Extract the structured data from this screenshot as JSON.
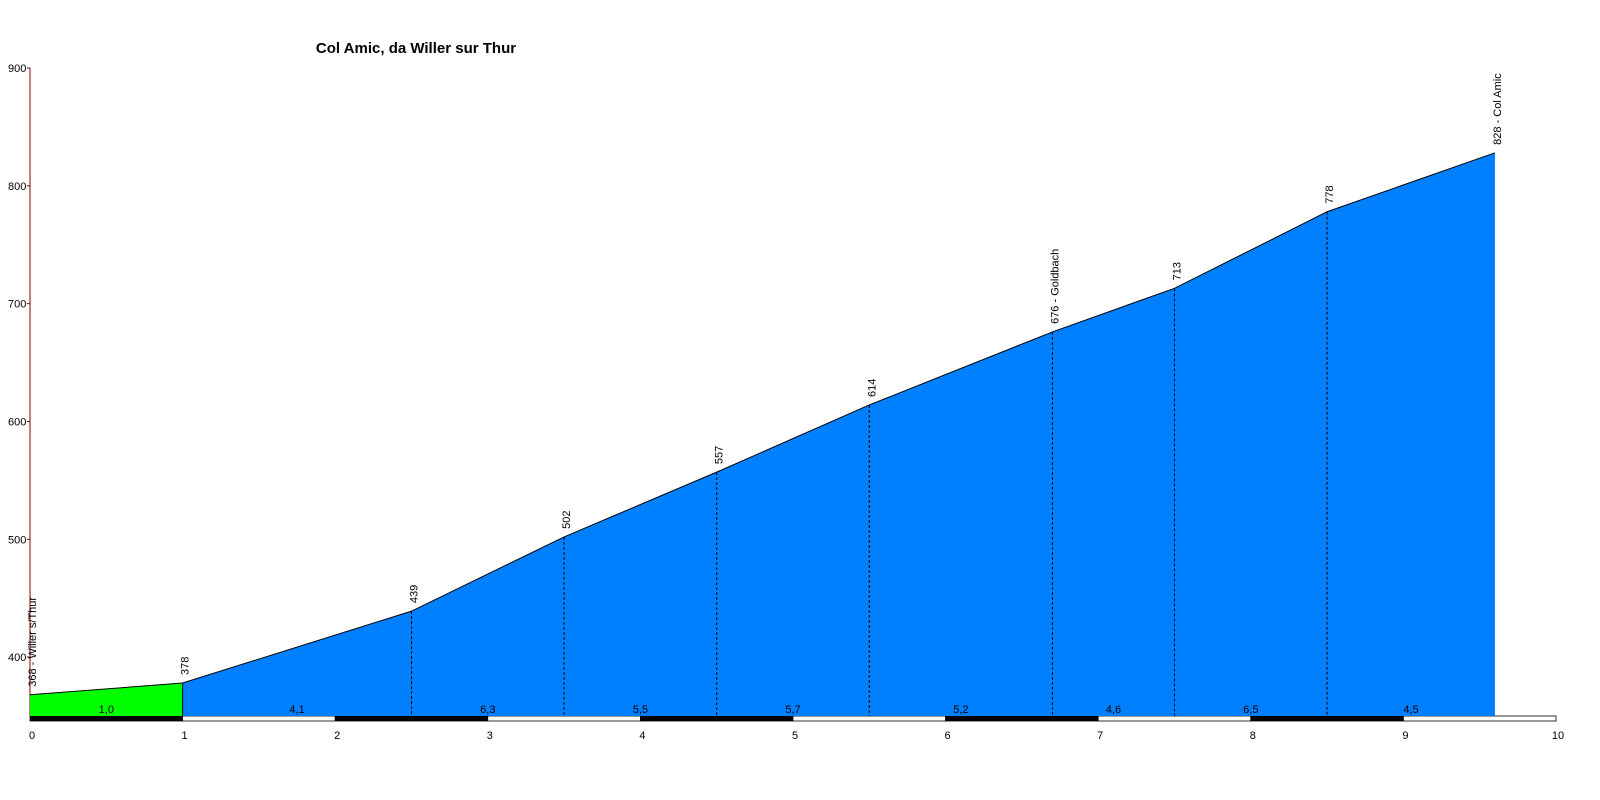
{
  "chart_data": {
    "type": "area",
    "title": "Col Amic, da Willer sur Thur",
    "x": [
      0,
      1,
      2.5,
      3.5,
      4.5,
      5.5,
      6.7,
      7.5,
      8.5,
      9.6
    ],
    "values": [
      368,
      378,
      439,
      502,
      557,
      614,
      676,
      713,
      778,
      828
    ],
    "point_labels": [
      "368 - Willer s/Thur",
      "378",
      "439",
      "502",
      "557",
      "614",
      "676 - Goldbach",
      "713",
      "778",
      "828 - Col Amic"
    ],
    "segment_labels": [
      "1,0",
      "4,1",
      "6,3",
      "5,5",
      "5,7",
      "5,2",
      "4,6",
      "6,5",
      "4,5"
    ],
    "segment_colors": [
      "#00ff00",
      "#0080ff",
      "#0080ff",
      "#0080ff",
      "#0080ff",
      "#0080ff",
      "#0080ff",
      "#0080ff",
      "#0080ff"
    ],
    "xlim": [
      0,
      10
    ],
    "xticks": [
      0,
      1,
      2,
      3,
      4,
      5,
      6,
      7,
      8,
      9,
      10
    ],
    "ylim": [
      350,
      900
    ],
    "yticks": [
      400,
      500,
      600,
      700,
      800,
      900
    ]
  }
}
